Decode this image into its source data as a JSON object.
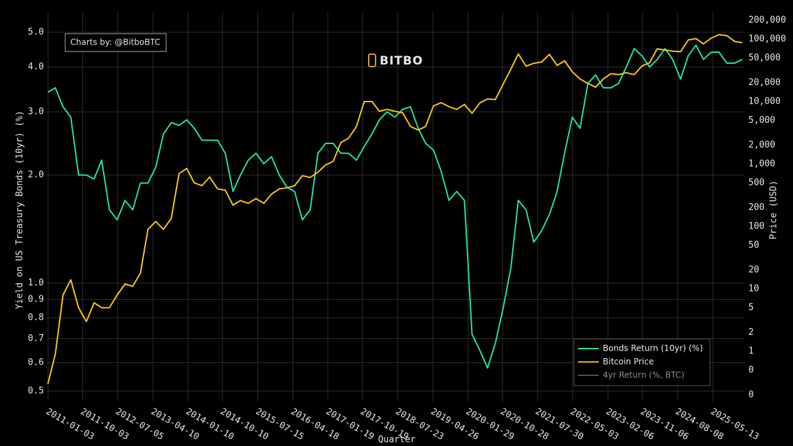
{
  "chart_data": {
    "type": "line",
    "x_label": "Quarter",
    "y_label": "Yield on US Treasury Bonds (10yr) (%)",
    "y2_label": "Price (USD)",
    "annotations": [
      "Charts by: @BitboBTC",
      "BITBO"
    ],
    "log_y": true,
    "log_y2": true,
    "grid": true,
    "legend_position": "bottom-right",
    "xlim": [
      "2010-12-23",
      "2026-01-22"
    ],
    "xticks": [
      "2011-01-03",
      "2011-10-03",
      "2012-07-05",
      "2013-04-10",
      "2014-01-10",
      "2014-10-10",
      "2015-07-15",
      "2016-04-18",
      "2017-01-19",
      "2017-10-19",
      "2018-07-23",
      "2019-04-26",
      "2020-01-29",
      "2020-10-28",
      "2021-07-30",
      "2022-05-03",
      "2023-02-06",
      "2023-11-06",
      "2024-08-08",
      "2025-05-13"
    ],
    "ylim": [
      0.468,
      5.68
    ],
    "yticks": [
      0.5,
      0.6,
      0.7,
      0.8,
      0.9,
      {
        "value": 1,
        "label": "1.0"
      },
      {
        "value": 2,
        "label": "2.0"
      },
      {
        "value": 3,
        "label": "3.0"
      },
      {
        "value": 4,
        "label": "4.0"
      },
      {
        "value": 5,
        "label": "5.0"
      }
    ],
    "y2lim": [
      0.158,
      268500
    ],
    "y2ticks": [
      {
        "value": 0.2,
        "label": "0"
      },
      {
        "value": 0.5,
        "label": "0"
      },
      1,
      2,
      5,
      10,
      20,
      50,
      100,
      200,
      500,
      {
        "value": 1000,
        "label": "1,000"
      },
      {
        "value": 2000,
        "label": "2,000"
      },
      {
        "value": 5000,
        "label": "5,000"
      },
      {
        "value": 10000,
        "label": "10,000"
      },
      {
        "value": 20000,
        "label": "20,000"
      },
      {
        "value": 50000,
        "label": "50,000"
      },
      {
        "value": 100000,
        "label": "100,000"
      },
      {
        "value": 200000,
        "label": "200,000"
      }
    ],
    "x": [
      "2011-01-01",
      "2011-03-01",
      "2011-05-01",
      "2011-07-01",
      "2011-09-01",
      "2011-11-01",
      "2012-01-01",
      "2012-03-01",
      "2012-05-01",
      "2012-07-01",
      "2012-09-01",
      "2012-11-01",
      "2013-01-01",
      "2013-03-01",
      "2013-05-01",
      "2013-07-01",
      "2013-09-01",
      "2013-11-01",
      "2014-01-01",
      "2014-03-01",
      "2014-05-01",
      "2014-07-01",
      "2014-09-01",
      "2014-11-01",
      "2015-01-01",
      "2015-03-01",
      "2015-05-01",
      "2015-07-01",
      "2015-09-01",
      "2015-11-01",
      "2016-01-01",
      "2016-03-01",
      "2016-05-01",
      "2016-07-01",
      "2016-09-01",
      "2016-11-01",
      "2017-01-01",
      "2017-03-01",
      "2017-05-01",
      "2017-07-01",
      "2017-09-01",
      "2017-11-01",
      "2018-01-01",
      "2018-03-01",
      "2018-05-01",
      "2018-07-01",
      "2018-09-01",
      "2018-11-01",
      "2019-01-01",
      "2019-03-01",
      "2019-05-01",
      "2019-07-01",
      "2019-09-01",
      "2019-11-01",
      "2020-01-01",
      "2020-03-01",
      "2020-05-01",
      "2020-07-01",
      "2020-09-01",
      "2020-11-01",
      "2021-01-01",
      "2021-03-01",
      "2021-05-01",
      "2021-07-01",
      "2021-09-01",
      "2021-11-01",
      "2022-01-01",
      "2022-03-01",
      "2022-05-01",
      "2022-07-01",
      "2022-09-01",
      "2022-11-01",
      "2023-01-01",
      "2023-03-01",
      "2023-05-01",
      "2023-07-01",
      "2023-09-01",
      "2023-11-01",
      "2024-01-01",
      "2024-03-01",
      "2024-05-01",
      "2024-07-01",
      "2024-09-01",
      "2024-11-01",
      "2025-01-01",
      "2025-03-01",
      "2025-05-01",
      "2025-07-01",
      "2025-09-01",
      "2025-11-01",
      "2026-01-01"
    ],
    "series": [
      {
        "name": "Bonds Return (10yr) (%)",
        "color": "#22e49a",
        "axis": "y",
        "values": [
          3.4,
          3.5,
          3.1,
          2.9,
          2.0,
          2.0,
          1.95,
          2.2,
          1.6,
          1.5,
          1.7,
          1.6,
          1.9,
          1.9,
          2.1,
          2.6,
          2.8,
          2.75,
          2.85,
          2.7,
          2.5,
          2.5,
          2.5,
          2.3,
          1.8,
          2.0,
          2.2,
          2.3,
          2.15,
          2.25,
          2.0,
          1.85,
          1.8,
          1.5,
          1.6,
          2.3,
          2.45,
          2.45,
          2.3,
          2.3,
          2.2,
          2.4,
          2.6,
          2.85,
          3.0,
          2.9,
          3.05,
          3.1,
          2.7,
          2.45,
          2.35,
          2.05,
          1.7,
          1.8,
          1.7,
          0.72,
          0.65,
          0.58,
          0.68,
          0.85,
          1.1,
          1.7,
          1.6,
          1.3,
          1.4,
          1.55,
          1.8,
          2.3,
          2.9,
          2.7,
          3.6,
          3.8,
          3.5,
          3.5,
          3.6,
          4.0,
          4.5,
          4.3,
          4.0,
          4.2,
          4.5,
          4.2,
          3.7,
          4.3,
          4.6,
          4.2,
          4.4,
          4.4,
          4.1,
          4.1,
          4.2
        ]
      },
      {
        "name": "Bitcoin Price",
        "color": "#f7c617",
        "axis": "y2",
        "values": [
          0.3,
          0.9,
          8,
          14,
          5,
          3,
          6,
          5,
          5,
          8,
          12,
          11,
          18,
          90,
          120,
          90,
          135,
          700,
          850,
          500,
          450,
          620,
          400,
          380,
          220,
          260,
          235,
          280,
          235,
          330,
          400,
          415,
          450,
          650,
          610,
          740,
          970,
          1100,
          2200,
          2600,
          4000,
          10000,
          10000,
          7000,
          7500,
          7000,
          6600,
          4000,
          3500,
          4000,
          8500,
          9600,
          8300,
          7500,
          9000,
          6500,
          9500,
          11000,
          10800,
          19000,
          33000,
          58000,
          37000,
          41000,
          43000,
          57000,
          38000,
          45000,
          30000,
          23000,
          19500,
          17000,
          23000,
          28000,
          27000,
          29000,
          27000,
          37000,
          42000,
          70000,
          67000,
          64000,
          63000,
          97000,
          102000,
          84000,
          104000,
          118000,
          114000,
          92000,
          88000
        ]
      },
      {
        "name": "4yr Return (%, BTC)",
        "color": "#8a6d4a",
        "axis": "y2",
        "visible": "legendonly"
      }
    ]
  }
}
